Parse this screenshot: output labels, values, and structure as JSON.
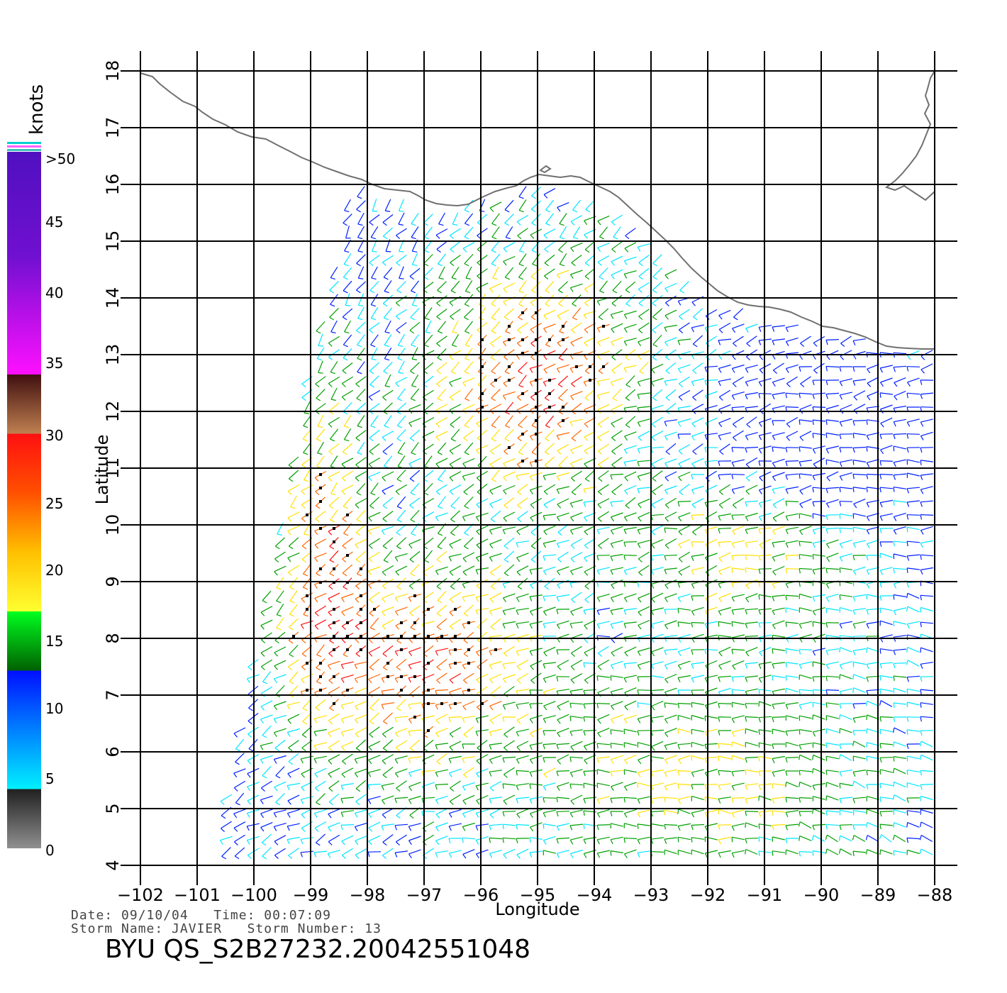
{
  "legend": {
    "title": "knots",
    "labels": [
      ">50",
      "45",
      "40",
      "35",
      "30",
      "25",
      "20",
      "15",
      "10",
      "5",
      "0"
    ]
  },
  "axes": {
    "x_label": "Longitude",
    "y_label": "Latitude",
    "x_ticks": [
      "-102",
      "-101",
      "-100",
      "-99",
      "-98",
      "-97",
      "-96",
      "-95",
      "-94",
      "-93",
      "-92",
      "-91",
      "-90",
      "-89",
      "-88"
    ],
    "y_ticks": [
      "4",
      "5",
      "6",
      "7",
      "8",
      "9",
      "10",
      "11",
      "12",
      "13",
      "14",
      "15",
      "16",
      "17",
      "18"
    ],
    "x_range": [
      -102,
      -88
    ],
    "y_range": [
      4,
      18
    ]
  },
  "metadata": {
    "date_line": "Date: 09/10/04   Time: 00:07:09",
    "storm_line": "Storm Name: JAVIER   Storm Number: 13",
    "product_id": "BYU QS_S2B27232.20042551048"
  },
  "colors": {
    "calm": "#808080",
    "light": "#00e5ff",
    "moderate": "#0020ff",
    "fresh": "#00a000",
    "strong": "#ffe000",
    "gale": "#ff6600",
    "storm": "#ff1010",
    "coast": "#707070"
  }
}
